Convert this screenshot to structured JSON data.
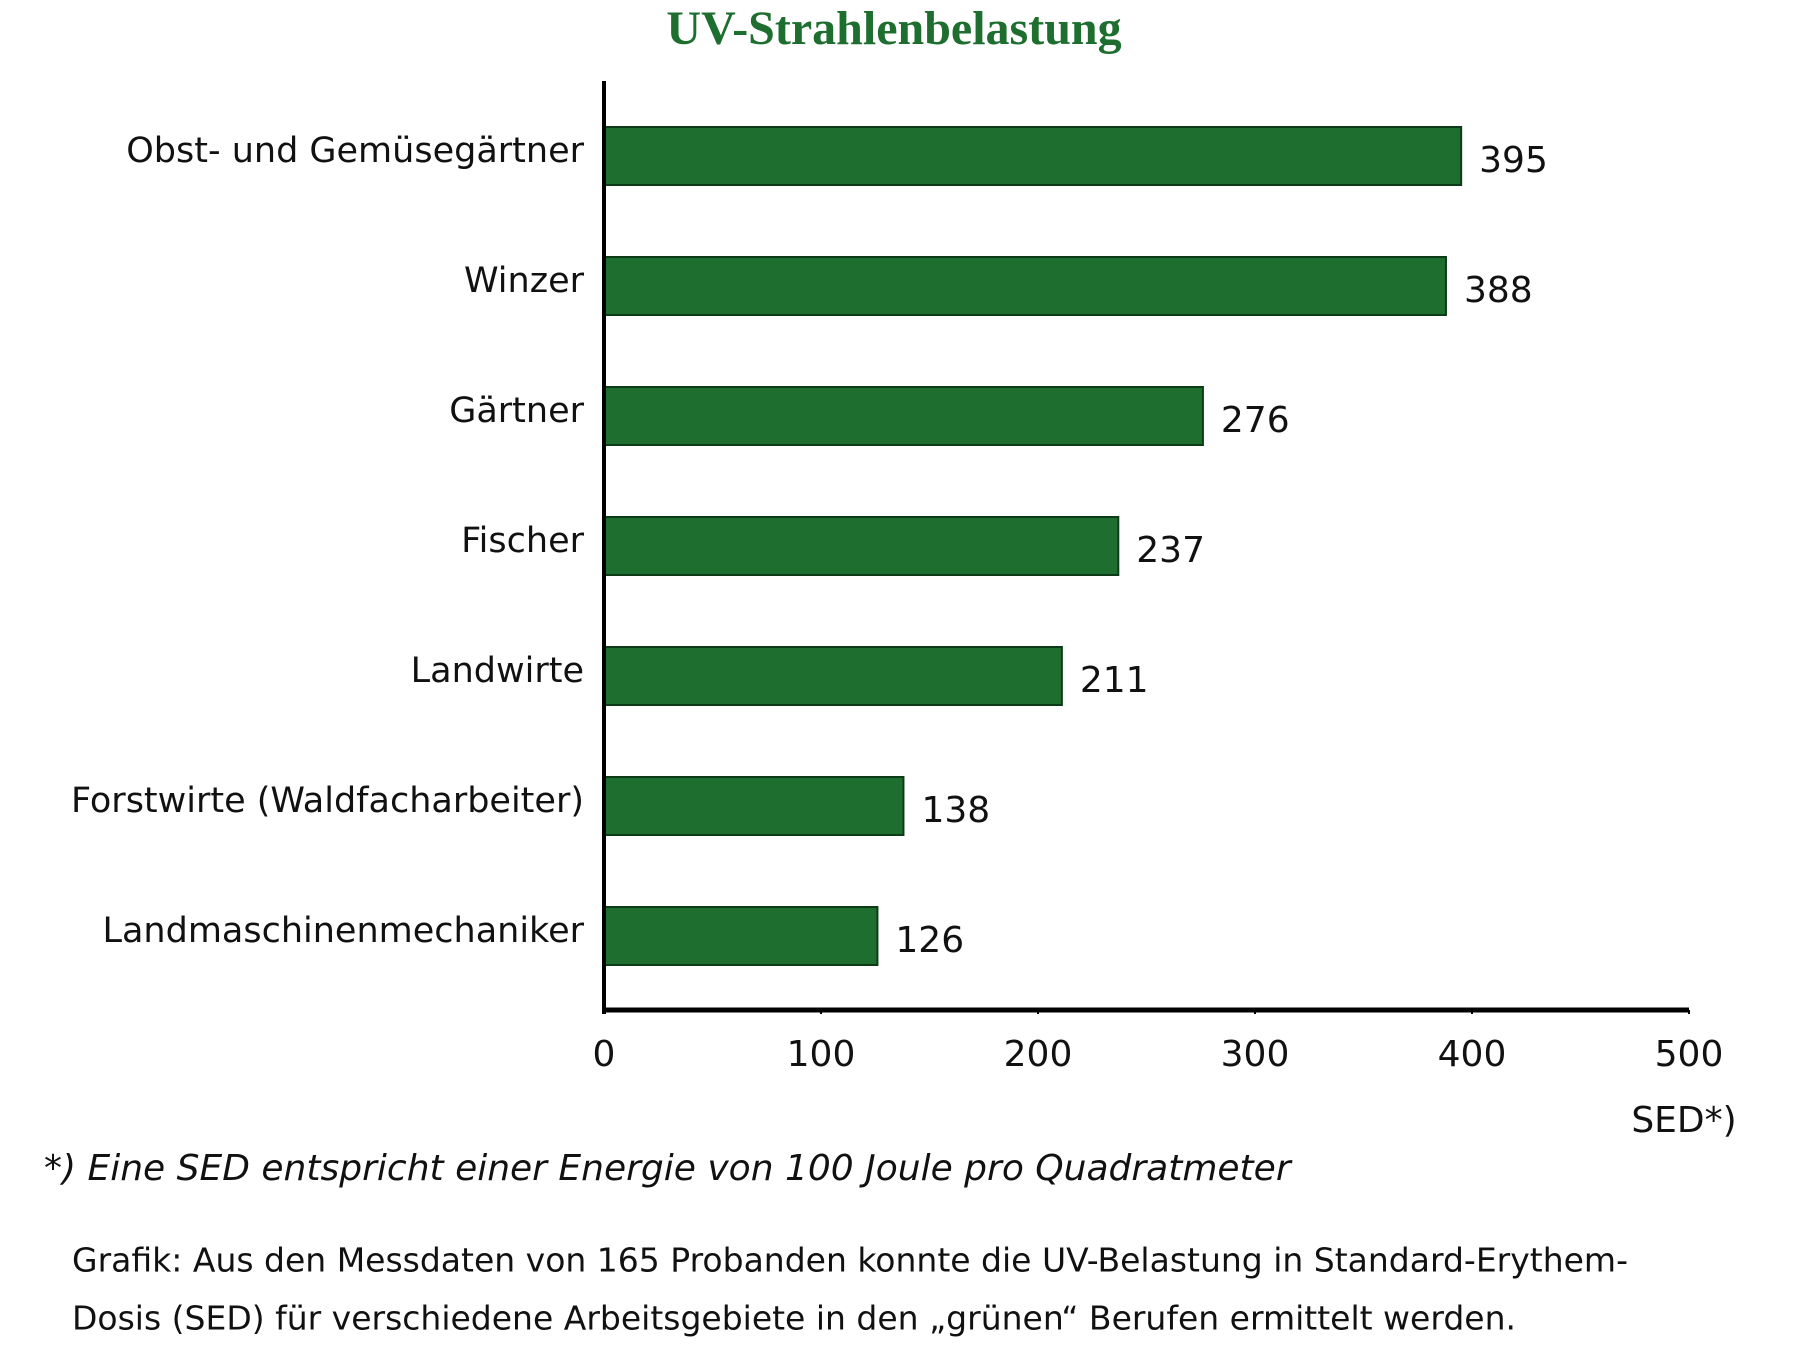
{
  "chart_data": {
    "type": "bar",
    "orientation": "horizontal",
    "title": "UV-Strahlenbelastung",
    "categories": [
      "Obst- und Gemüsegärtner",
      "Winzer",
      "Gärtner",
      "Fischer",
      "Landwirte",
      "Forstwirte (Waldfacharbeiter)",
      "Landmaschinenmechaniker"
    ],
    "values": [
      395,
      388,
      276,
      237,
      211,
      138,
      126
    ],
    "color": "#1e6e30",
    "xlim": [
      0,
      500
    ],
    "xticks": [
      0,
      100,
      200,
      300,
      400,
      500
    ],
    "xlabel": "SED*)",
    "footnote": "*) Eine SED entspricht einer Energie von 100 Joule pro Quadratmeter",
    "caption": [
      "Grafik: Aus den Messdaten von 165 Probanden konnte die UV-Belastung in Standard-Erythem-",
      "Dosis (SED) für verschiedene Arbeitsgebiete in den „grünen“ Berufen ermittelt werden."
    ]
  }
}
